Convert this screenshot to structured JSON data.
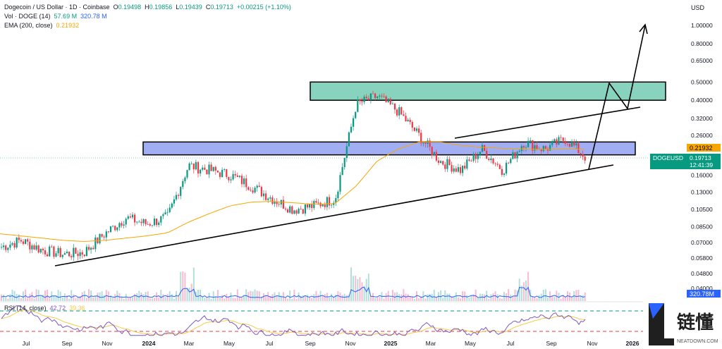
{
  "header": {
    "title": "Dogecoin / US Dollar · 1D · Coinbase",
    "o_label": "O",
    "o_value": "0.19498",
    "h_label": "H",
    "h_value": "0.19856",
    "l_label": "L",
    "l_value": "0.19439",
    "c_label": "C",
    "c_value": "0.19713",
    "change": "+0.00215 (+1.10%)",
    "vol_label": "Vol · DOGE (14)",
    "vol_value1": "57.69 M",
    "vol_value2": "320.78 M",
    "ema_label": "EMA (200, close)",
    "ema_value": "0.21932"
  },
  "price_axis": {
    "currency": "USD",
    "ticks": [
      "1.00000",
      "0.80000",
      "0.65000",
      "0.50000",
      "0.40000",
      "0.32000",
      "0.26000",
      "0.21932",
      "0.16000",
      "0.13000",
      "0.10500",
      "0.08500",
      "0.07000",
      "0.05800",
      "0.04800",
      "0.04000"
    ],
    "ticks_values": [
      1.0,
      0.8,
      0.65,
      0.5,
      0.4,
      0.32,
      0.26,
      0.21932,
      0.16,
      0.13,
      0.105,
      0.085,
      0.07,
      0.058,
      0.048,
      0.04
    ],
    "ema_tag": "0.21932",
    "symbol_tag": "DOGEUSD",
    "price_tag": "0.19713",
    "countdown_tag": "12:41:39",
    "volume_tag": "320.78M"
  },
  "rsi": {
    "label": "RSI (14, close)",
    "value1": "42.72",
    "value2": "39.36"
  },
  "time_axis": {
    "labels": [
      "Jul",
      "Sep",
      "Nov",
      "2024",
      "Mar",
      "May",
      "Jul",
      "Sep",
      "Nov",
      "2025",
      "Mar",
      "May",
      "Jul",
      "Sep",
      "Nov",
      "2026"
    ]
  },
  "logo": {
    "cn_text": "链懂",
    "en_text": "NEATDOWN.COM"
  },
  "colors": {
    "up": "#089981",
    "down": "#f23645",
    "ema": "#f7a600",
    "volume_ma": "#2962ff",
    "resistance_zone": "#5fc4a8",
    "support_zone": "#7b8cf0",
    "rsi_line": "#7e57c2",
    "rsi_ma": "#f7c948"
  },
  "chart_data": {
    "type": "line",
    "title": "Dogecoin / US Dollar · 1D · Coinbase",
    "xlabel": "",
    "ylabel": "USD",
    "y_scale": "log",
    "ylim": [
      0.04,
      1.0
    ],
    "x": [
      "2023-06",
      "2023-07",
      "2023-08",
      "2023-09",
      "2023-10",
      "2023-11",
      "2023-12",
      "2024-01",
      "2024-02",
      "2024-03",
      "2024-04",
      "2024-05",
      "2024-06",
      "2024-07",
      "2024-08",
      "2024-09",
      "2024-10",
      "2024-11",
      "2024-12",
      "2025-01",
      "2025-02",
      "2025-03",
      "2025-04",
      "2025-05",
      "2025-06",
      "2025-07",
      "2025-08",
      "2025-09",
      "2025-10"
    ],
    "series": [
      {
        "name": "Dogecoin / US Dollar",
        "values": [
          0.066,
          0.072,
          0.064,
          0.061,
          0.062,
          0.078,
          0.095,
          0.088,
          0.096,
          0.18,
          0.17,
          0.16,
          0.14,
          0.12,
          0.105,
          0.11,
          0.12,
          0.38,
          0.42,
          0.35,
          0.26,
          0.19,
          0.17,
          0.22,
          0.17,
          0.24,
          0.22,
          0.25,
          0.197
        ]
      },
      {
        "name": "EMA (200, close)",
        "values": [
          0.078,
          0.076,
          0.074,
          0.072,
          0.071,
          0.072,
          0.074,
          0.076,
          0.079,
          0.09,
          0.1,
          0.11,
          0.115,
          0.116,
          0.114,
          0.112,
          0.113,
          0.14,
          0.19,
          0.22,
          0.24,
          0.24,
          0.23,
          0.225,
          0.222,
          0.22,
          0.219,
          0.22,
          0.21932
        ]
      }
    ],
    "annotations": {
      "resistance_zone": [
        0.4,
        0.5
      ],
      "support_zone": [
        0.205,
        0.24
      ],
      "projection_target": 1.0
    },
    "rsi_levels": [
      70,
      30
    ],
    "grid": false
  }
}
